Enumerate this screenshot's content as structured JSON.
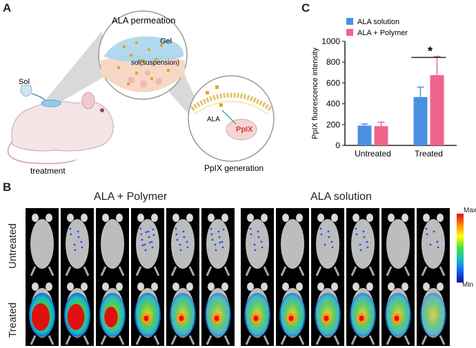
{
  "panels": {
    "a": {
      "letter": "A",
      "sol_label": "Sol",
      "treatment_label": "treatment",
      "zoom1_title": "ALA permeation",
      "gel_label": "Gel",
      "sol_suspension_label": "sol(suspension)",
      "zoom2_ala_label": "ALA",
      "zoom2_pplx_label": "PpIX",
      "zoom2_caption": "PpIX generation"
    },
    "b": {
      "letter": "B",
      "group_left": "ALA + Polymer",
      "group_right": "ALA solution",
      "row_top": "Untreated",
      "row_bottom": "Treated",
      "colorbar_max": "Max",
      "colorbar_min": "Min"
    },
    "c": {
      "letter": "C"
    }
  },
  "chart_data": {
    "type": "bar",
    "categories": [
      "Untreated",
      "Treated"
    ],
    "series": [
      {
        "name": "ALA solution",
        "color": "#4a90e2",
        "values": [
          190,
          465
        ],
        "errors": [
          15,
          95
        ]
      },
      {
        "name": "ALA + Polymer",
        "color": "#f0648c",
        "values": [
          185,
          675
        ],
        "errors": [
          38,
          180
        ]
      }
    ],
    "ylabel": "PpIX fluorescence intensity",
    "xlabel": "",
    "ylim": [
      0,
      1000
    ],
    "yticks": [
      0,
      200,
      400,
      600,
      800,
      1000
    ],
    "grid": false,
    "legend_position": "top-left",
    "annotation": "*"
  }
}
